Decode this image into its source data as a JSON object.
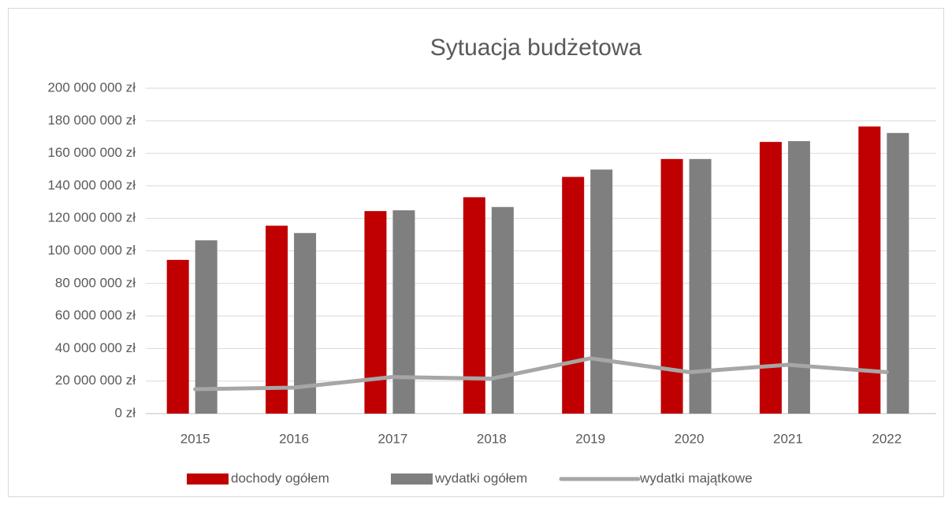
{
  "chart_data": {
    "type": "bar",
    "title": "Sytuacja budżetowa",
    "categories": [
      "2015",
      "2016",
      "2017",
      "2018",
      "2019",
      "2020",
      "2021",
      "2022"
    ],
    "series": [
      {
        "name": "dochody ogółem",
        "color": "#c00000",
        "type": "bar",
        "values": [
          94500000,
          115500000,
          124500000,
          133000000,
          145500000,
          156500000,
          167000000,
          176500000
        ]
      },
      {
        "name": "wydatki ogółem",
        "color": "#7f7f7f",
        "type": "bar",
        "values": [
          106500000,
          111000000,
          125000000,
          127000000,
          150000000,
          156500000,
          167500000,
          172500000
        ]
      },
      {
        "name": "wydatki majątkowe",
        "color": "#a6a6a6",
        "type": "line",
        "values": [
          15000000,
          16000000,
          22500000,
          21500000,
          34000000,
          25500000,
          30000000,
          25500000
        ]
      }
    ],
    "ylim": [
      0,
      200000000
    ],
    "yticks": [
      {
        "value": 0,
        "label": "0 zł"
      },
      {
        "value": 20000000,
        "label": "20 000 000 zł"
      },
      {
        "value": 40000000,
        "label": "40 000 000 zł"
      },
      {
        "value": 60000000,
        "label": "60 000 000 zł"
      },
      {
        "value": 80000000,
        "label": "80 000 000 zł"
      },
      {
        "value": 100000000,
        "label": "100 000 000 zł"
      },
      {
        "value": 120000000,
        "label": "120 000 000 zł"
      },
      {
        "value": 140000000,
        "label": "140 000 000 zł"
      },
      {
        "value": 160000000,
        "label": "160 000 000 zł"
      },
      {
        "value": 180000000,
        "label": "180 000 000 zł"
      },
      {
        "value": 200000000,
        "label": "200 000 000 zł"
      }
    ],
    "grid": true,
    "legend": "bottom"
  }
}
